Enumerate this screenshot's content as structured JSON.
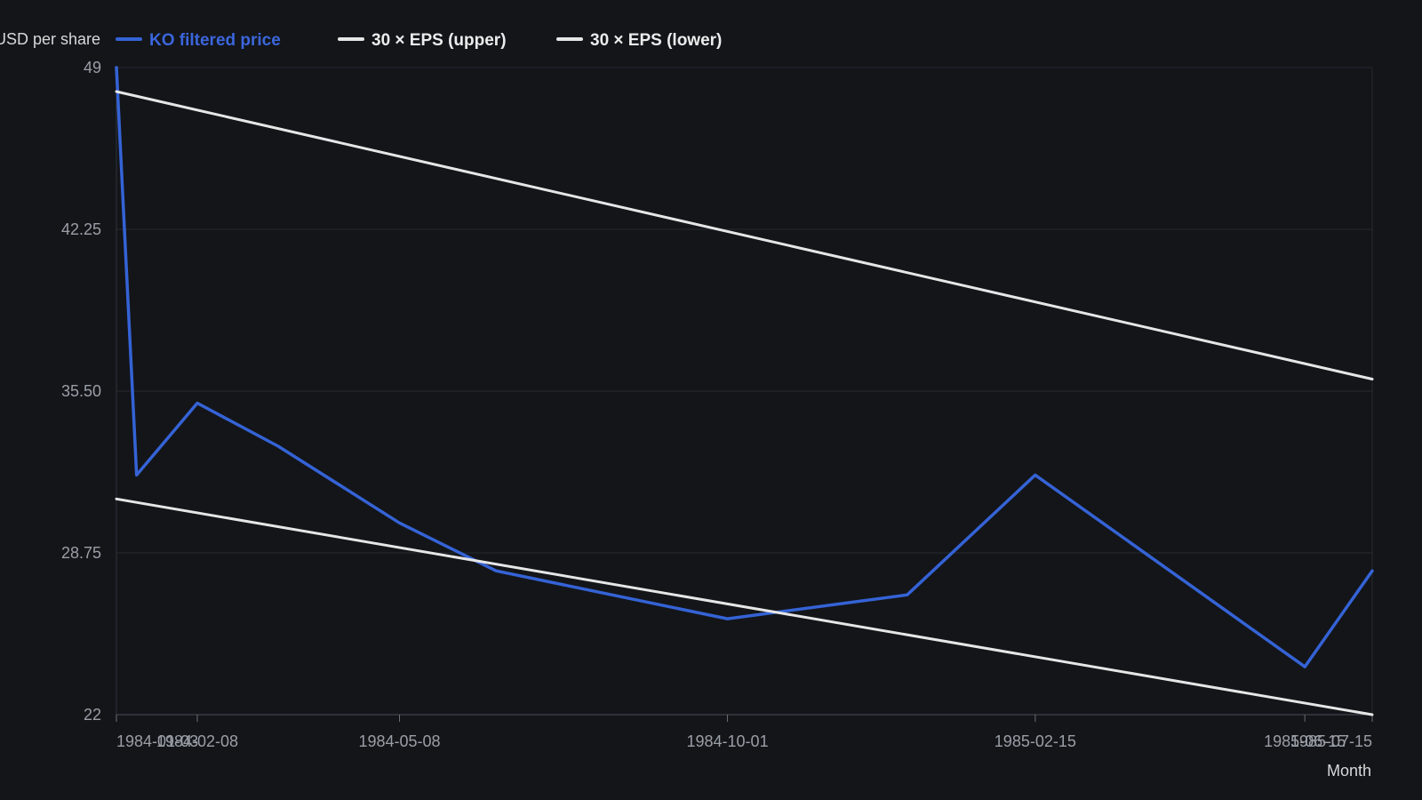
{
  "chart_data": {
    "type": "line",
    "title": "",
    "xlabel": "Month",
    "ylabel": "USD per share",
    "ylim": [
      22,
      49
    ],
    "xlim": [
      "1984-01-03",
      "1985-07-15"
    ],
    "y_ticks": [
      "22",
      "28.75",
      "35.50",
      "42.25",
      "49"
    ],
    "x_ticks": [
      "1984-01-03",
      "1984-02-08",
      "1984-05-08",
      "1984-10-01",
      "1985-02-15",
      "1985-06-15",
      "1985-07-15"
    ],
    "grid": true,
    "legend_position": "top-left",
    "series": [
      {
        "name": "KO filtered price",
        "color": "#3563d6",
        "points": [
          [
            "1984-01-03",
            49.0
          ],
          [
            "1984-01-12",
            32.0
          ],
          [
            "1984-02-08",
            35.0
          ],
          [
            "1984-03-15",
            33.2
          ],
          [
            "1984-05-08",
            30.0
          ],
          [
            "1984-06-20",
            28.0
          ],
          [
            "1984-10-01",
            26.0
          ],
          [
            "1984-12-20",
            27.0
          ],
          [
            "1985-02-15",
            32.0
          ],
          [
            "1985-06-15",
            24.0
          ],
          [
            "1985-07-15",
            28.0
          ]
        ]
      },
      {
        "name": "30 × EPS (upper)",
        "color": "#e6e6e6",
        "points": [
          [
            "1984-01-03",
            48.0
          ],
          [
            "1985-07-15",
            36.0
          ]
        ]
      },
      {
        "name": "30 × EPS (lower)",
        "color": "#e6e6e6",
        "points": [
          [
            "1984-01-03",
            31.0
          ],
          [
            "1985-07-15",
            22.0
          ]
        ]
      }
    ]
  }
}
